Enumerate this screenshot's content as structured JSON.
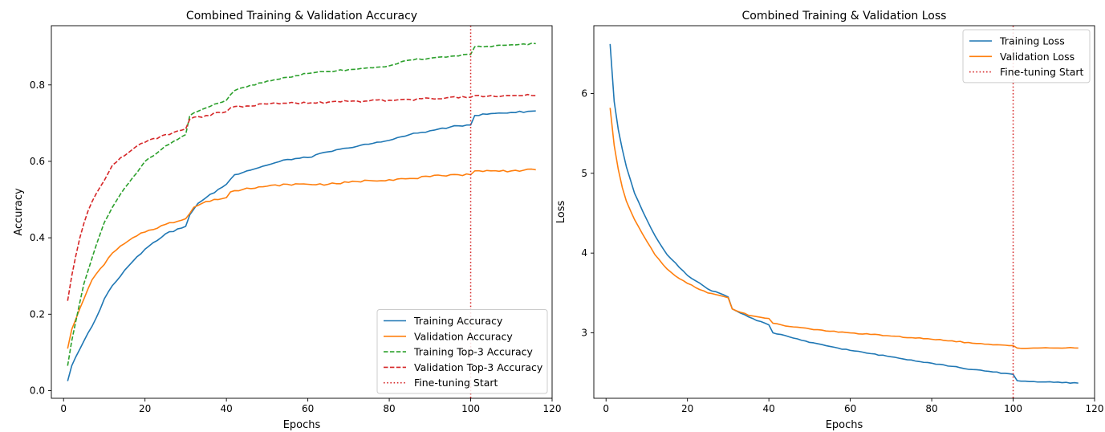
{
  "chart_data": [
    {
      "type": "line",
      "title": "Combined Training & Validation Accuracy",
      "xlabel": "Epochs",
      "ylabel": "Accuracy",
      "xlim": [
        -3,
        120
      ],
      "ylim": [
        -0.02,
        0.955
      ],
      "xticks": [
        0,
        20,
        40,
        60,
        80,
        100,
        120
      ],
      "yticks": [
        0.0,
        0.2,
        0.4,
        0.6,
        0.8
      ],
      "ytick_labels": [
        "0.0",
        "0.2",
        "0.4",
        "0.6",
        "0.8"
      ],
      "legend_position": "lower-right",
      "vline": {
        "x": 100,
        "name": "Fine-tuning Start",
        "color": "#d62728",
        "style": "dotted"
      },
      "series": [
        {
          "name": "Training Accuracy",
          "color": "#1f77b4",
          "style": "solid",
          "keypoints": [
            [
              1,
              0.025
            ],
            [
              2,
              0.065
            ],
            [
              5,
              0.13
            ],
            [
              8,
              0.19
            ],
            [
              10,
              0.24
            ],
            [
              12,
              0.275
            ],
            [
              15,
              0.315
            ],
            [
              18,
              0.35
            ],
            [
              20,
              0.37
            ],
            [
              25,
              0.41
            ],
            [
              30,
              0.43
            ],
            [
              31,
              0.46
            ],
            [
              33,
              0.49
            ],
            [
              35,
              0.505
            ],
            [
              40,
              0.54
            ],
            [
              42,
              0.565
            ],
            [
              45,
              0.575
            ],
            [
              50,
              0.59
            ],
            [
              55,
              0.605
            ],
            [
              60,
              0.61
            ],
            [
              65,
              0.625
            ],
            [
              70,
              0.635
            ],
            [
              75,
              0.645
            ],
            [
              80,
              0.655
            ],
            [
              85,
              0.67
            ],
            [
              90,
              0.68
            ],
            [
              95,
              0.69
            ],
            [
              99,
              0.695
            ],
            [
              100,
              0.695
            ],
            [
              101,
              0.72
            ],
            [
              105,
              0.725
            ],
            [
              110,
              0.728
            ],
            [
              116,
              0.732
            ]
          ]
        },
        {
          "name": "Validation Accuracy",
          "color": "#ff7f0e",
          "style": "solid",
          "keypoints": [
            [
              1,
              0.11
            ],
            [
              2,
              0.16
            ],
            [
              5,
              0.24
            ],
            [
              7,
              0.29
            ],
            [
              10,
              0.33
            ],
            [
              12,
              0.36
            ],
            [
              15,
              0.385
            ],
            [
              18,
              0.405
            ],
            [
              20,
              0.415
            ],
            [
              25,
              0.435
            ],
            [
              30,
              0.45
            ],
            [
              32,
              0.48
            ],
            [
              35,
              0.495
            ],
            [
              38,
              0.5
            ],
            [
              40,
              0.505
            ],
            [
              41,
              0.52
            ],
            [
              45,
              0.53
            ],
            [
              50,
              0.535
            ],
            [
              55,
              0.54
            ],
            [
              60,
              0.54
            ],
            [
              65,
              0.54
            ],
            [
              70,
              0.545
            ],
            [
              75,
              0.55
            ],
            [
              80,
              0.552
            ],
            [
              85,
              0.555
            ],
            [
              90,
              0.56
            ],
            [
              95,
              0.565
            ],
            [
              100,
              0.565
            ],
            [
              101,
              0.575
            ],
            [
              105,
              0.575
            ],
            [
              110,
              0.575
            ],
            [
              116,
              0.578
            ]
          ]
        },
        {
          "name": "Training Top-3 Accuracy",
          "color": "#2ca02c",
          "style": "dashed",
          "keypoints": [
            [
              1,
              0.065
            ],
            [
              2,
              0.13
            ],
            [
              5,
              0.28
            ],
            [
              8,
              0.38
            ],
            [
              10,
              0.44
            ],
            [
              12,
              0.48
            ],
            [
              15,
              0.53
            ],
            [
              18,
              0.57
            ],
            [
              20,
              0.6
            ],
            [
              25,
              0.64
            ],
            [
              30,
              0.67
            ],
            [
              31,
              0.72
            ],
            [
              35,
              0.74
            ],
            [
              40,
              0.76
            ],
            [
              42,
              0.785
            ],
            [
              45,
              0.795
            ],
            [
              50,
              0.81
            ],
            [
              55,
              0.82
            ],
            [
              60,
              0.83
            ],
            [
              65,
              0.835
            ],
            [
              70,
              0.84
            ],
            [
              75,
              0.845
            ],
            [
              80,
              0.85
            ],
            [
              85,
              0.865
            ],
            [
              90,
              0.87
            ],
            [
              95,
              0.875
            ],
            [
              99,
              0.88
            ],
            [
              100,
              0.88
            ],
            [
              101,
              0.9
            ],
            [
              105,
              0.9
            ],
            [
              110,
              0.905
            ],
            [
              116,
              0.908
            ]
          ]
        },
        {
          "name": "Validation Top-3 Accuracy",
          "color": "#d62728",
          "style": "dashed",
          "keypoints": [
            [
              1,
              0.235
            ],
            [
              2,
              0.3
            ],
            [
              4,
              0.4
            ],
            [
              6,
              0.47
            ],
            [
              8,
              0.515
            ],
            [
              10,
              0.55
            ],
            [
              12,
              0.59
            ],
            [
              15,
              0.615
            ],
            [
              18,
              0.64
            ],
            [
              20,
              0.65
            ],
            [
              25,
              0.67
            ],
            [
              30,
              0.685
            ],
            [
              31,
              0.71
            ],
            [
              35,
              0.72
            ],
            [
              40,
              0.73
            ],
            [
              41,
              0.74
            ],
            [
              45,
              0.745
            ],
            [
              50,
              0.75
            ],
            [
              55,
              0.752
            ],
            [
              60,
              0.752
            ],
            [
              65,
              0.755
            ],
            [
              70,
              0.757
            ],
            [
              75,
              0.758
            ],
            [
              80,
              0.76
            ],
            [
              85,
              0.762
            ],
            [
              90,
              0.765
            ],
            [
              95,
              0.768
            ],
            [
              100,
              0.768
            ],
            [
              101,
              0.772
            ],
            [
              105,
              0.772
            ],
            [
              110,
              0.772
            ],
            [
              116,
              0.772
            ]
          ]
        }
      ]
    },
    {
      "type": "line",
      "title": "Combined Training & Validation Loss",
      "xlabel": "Epochs",
      "ylabel": "Loss",
      "xlim": [
        -3,
        120
      ],
      "ylim": [
        2.18,
        6.85
      ],
      "xticks": [
        0,
        20,
        40,
        60,
        80,
        100,
        120
      ],
      "yticks": [
        3,
        4,
        5,
        6
      ],
      "ytick_labels": [
        "3",
        "4",
        "5",
        "6"
      ],
      "legend_position": "upper-right",
      "vline": {
        "x": 100,
        "name": "Fine-tuning Start",
        "color": "#d62728",
        "style": "dotted"
      },
      "series": [
        {
          "name": "Training Loss",
          "color": "#1f77b4",
          "style": "solid",
          "keypoints": [
            [
              1,
              6.62
            ],
            [
              2,
              5.9
            ],
            [
              3,
              5.55
            ],
            [
              4,
              5.3
            ],
            [
              5,
              5.08
            ],
            [
              7,
              4.75
            ],
            [
              10,
              4.42
            ],
            [
              12,
              4.22
            ],
            [
              15,
              3.98
            ],
            [
              18,
              3.82
            ],
            [
              20,
              3.72
            ],
            [
              25,
              3.55
            ],
            [
              30,
              3.45
            ],
            [
              31,
              3.3
            ],
            [
              35,
              3.2
            ],
            [
              40,
              3.1
            ],
            [
              41,
              3.0
            ],
            [
              45,
              2.95
            ],
            [
              50,
              2.88
            ],
            [
              55,
              2.83
            ],
            [
              60,
              2.78
            ],
            [
              65,
              2.74
            ],
            [
              70,
              2.7
            ],
            [
              75,
              2.66
            ],
            [
              80,
              2.62
            ],
            [
              85,
              2.58
            ],
            [
              90,
              2.54
            ],
            [
              95,
              2.51
            ],
            [
              100,
              2.48
            ],
            [
              101,
              2.4
            ],
            [
              105,
              2.39
            ],
            [
              110,
              2.38
            ],
            [
              116,
              2.37
            ]
          ]
        },
        {
          "name": "Validation Loss",
          "color": "#ff7f0e",
          "style": "solid",
          "keypoints": [
            [
              1,
              5.82
            ],
            [
              2,
              5.35
            ],
            [
              3,
              5.05
            ],
            [
              4,
              4.82
            ],
            [
              5,
              4.65
            ],
            [
              7,
              4.42
            ],
            [
              10,
              4.15
            ],
            [
              12,
              3.98
            ],
            [
              15,
              3.8
            ],
            [
              18,
              3.68
            ],
            [
              20,
              3.62
            ],
            [
              25,
              3.5
            ],
            [
              30,
              3.44
            ],
            [
              31,
              3.3
            ],
            [
              35,
              3.22
            ],
            [
              40,
              3.18
            ],
            [
              41,
              3.12
            ],
            [
              45,
              3.08
            ],
            [
              50,
              3.05
            ],
            [
              55,
              3.02
            ],
            [
              60,
              3.0
            ],
            [
              65,
              2.98
            ],
            [
              70,
              2.96
            ],
            [
              75,
              2.94
            ],
            [
              80,
              2.92
            ],
            [
              85,
              2.9
            ],
            [
              90,
              2.87
            ],
            [
              95,
              2.85
            ],
            [
              100,
              2.84
            ],
            [
              101,
              2.81
            ],
            [
              105,
              2.81
            ],
            [
              110,
              2.81
            ],
            [
              116,
              2.81
            ]
          ]
        }
      ]
    }
  ]
}
